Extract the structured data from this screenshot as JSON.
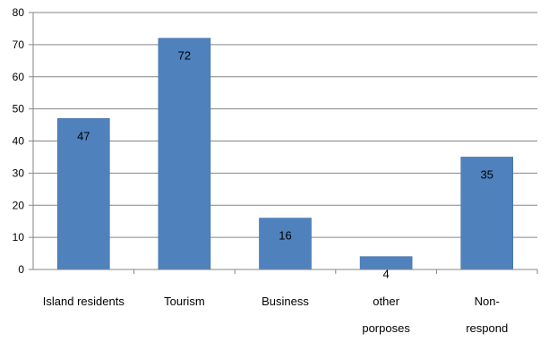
{
  "chart_data": {
    "type": "bar",
    "title": "",
    "xlabel": "",
    "ylabel": "",
    "categories": [
      [
        "Island residents"
      ],
      [
        "Tourism"
      ],
      [
        "Business"
      ],
      [
        "other",
        "porposes"
      ],
      [
        "Non-",
        "respond"
      ]
    ],
    "values": [
      47,
      72,
      16,
      4,
      35
    ],
    "data_labels": [
      "47",
      "72",
      "16",
      "4",
      "35"
    ],
    "ylim": [
      0,
      80
    ],
    "yticks": [
      0,
      10,
      20,
      30,
      40,
      50,
      60,
      70,
      80
    ],
    "grid": true,
    "legend": "none",
    "bar_color": "#4F81BD",
    "bar_edge_color": "#3F6FA8",
    "grid_color": "#868686",
    "axis_color": "#868686"
  }
}
